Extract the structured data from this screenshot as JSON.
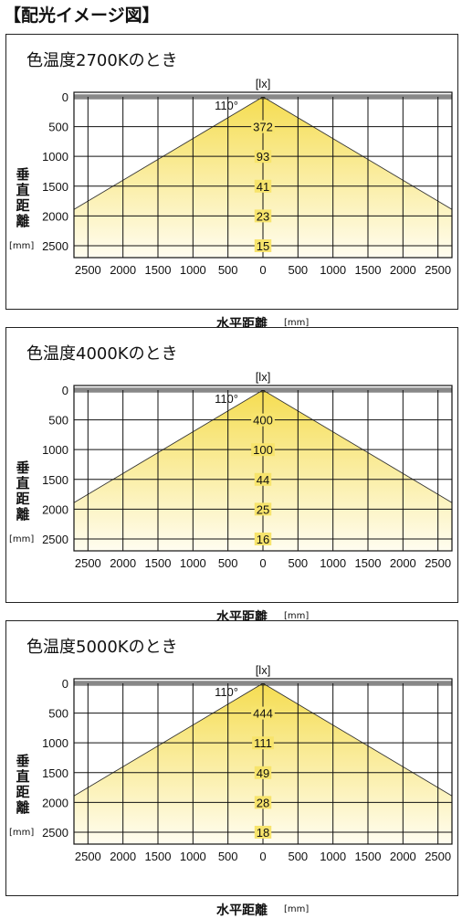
{
  "page": {
    "title": "【配光イメージ図】"
  },
  "colors": {
    "beam_top": "#f5dd52",
    "beam_bottom": "#fffdf0",
    "grid": "#111111",
    "border": "#222222"
  },
  "chart_data": [
    {
      "type": "area",
      "title": "色温度2700Kのとき",
      "beam_angle_label": "110°",
      "lux_unit": "[lx]",
      "xlabel": "水平距離",
      "xunit": "[mm]",
      "ylabel": "垂直距離",
      "yunit": "[mm]",
      "xlim": [
        -2700,
        2700
      ],
      "ylim": [
        0,
        2700
      ],
      "x_ticks": [
        -2500,
        -2000,
        -1500,
        -1000,
        -500,
        0,
        500,
        1000,
        1500,
        2000,
        2500
      ],
      "x_tick_labels": [
        "2500",
        "2000",
        "1500",
        "1000",
        "500",
        "0",
        "500",
        "1000",
        "1500",
        "2000",
        "2500"
      ],
      "y_ticks": [
        0,
        500,
        1000,
        1500,
        2000,
        2500
      ],
      "y_tick_labels": [
        "0",
        "500",
        "1000",
        "1500",
        "2000",
        "2500"
      ],
      "beam_angle_deg": 110,
      "illuminance": [
        {
          "distance": 500,
          "lux": "372"
        },
        {
          "distance": 1000,
          "lux": "93"
        },
        {
          "distance": 1500,
          "lux": "41"
        },
        {
          "distance": 2000,
          "lux": "23"
        },
        {
          "distance": 2500,
          "lux": "15"
        }
      ]
    },
    {
      "type": "area",
      "title": "色温度4000Kのとき",
      "beam_angle_label": "110°",
      "lux_unit": "[lx]",
      "xlabel": "水平距離",
      "xunit": "[mm]",
      "ylabel": "垂直距離",
      "yunit": "[mm]",
      "xlim": [
        -2700,
        2700
      ],
      "ylim": [
        0,
        2700
      ],
      "x_ticks": [
        -2500,
        -2000,
        -1500,
        -1000,
        -500,
        0,
        500,
        1000,
        1500,
        2000,
        2500
      ],
      "x_tick_labels": [
        "2500",
        "2000",
        "1500",
        "1000",
        "500",
        "0",
        "500",
        "1000",
        "1500",
        "2000",
        "2500"
      ],
      "y_ticks": [
        0,
        500,
        1000,
        1500,
        2000,
        2500
      ],
      "y_tick_labels": [
        "0",
        "500",
        "1000",
        "1500",
        "2000",
        "2500"
      ],
      "beam_angle_deg": 110,
      "illuminance": [
        {
          "distance": 500,
          "lux": "400"
        },
        {
          "distance": 1000,
          "lux": "100"
        },
        {
          "distance": 1500,
          "lux": "44"
        },
        {
          "distance": 2000,
          "lux": "25"
        },
        {
          "distance": 2500,
          "lux": "16"
        }
      ]
    },
    {
      "type": "area",
      "title": "色温度5000Kのとき",
      "beam_angle_label": "110°",
      "lux_unit": "[lx]",
      "xlabel": "水平距離",
      "xunit": "[mm]",
      "ylabel": "垂直距離",
      "yunit": "[mm]",
      "xlim": [
        -2700,
        2700
      ],
      "ylim": [
        0,
        2700
      ],
      "x_ticks": [
        -2500,
        -2000,
        -1500,
        -1000,
        -500,
        0,
        500,
        1000,
        1500,
        2000,
        2500
      ],
      "x_tick_labels": [
        "2500",
        "2000",
        "1500",
        "1000",
        "500",
        "0",
        "500",
        "1000",
        "1500",
        "2000",
        "2500"
      ],
      "y_ticks": [
        0,
        500,
        1000,
        1500,
        2000,
        2500
      ],
      "y_tick_labels": [
        "0",
        "500",
        "1000",
        "1500",
        "2000",
        "2500"
      ],
      "beam_angle_deg": 110,
      "illuminance": [
        {
          "distance": 500,
          "lux": "444"
        },
        {
          "distance": 1000,
          "lux": "111"
        },
        {
          "distance": 1500,
          "lux": "49"
        },
        {
          "distance": 2000,
          "lux": "28"
        },
        {
          "distance": 2500,
          "lux": "18"
        }
      ]
    }
  ]
}
